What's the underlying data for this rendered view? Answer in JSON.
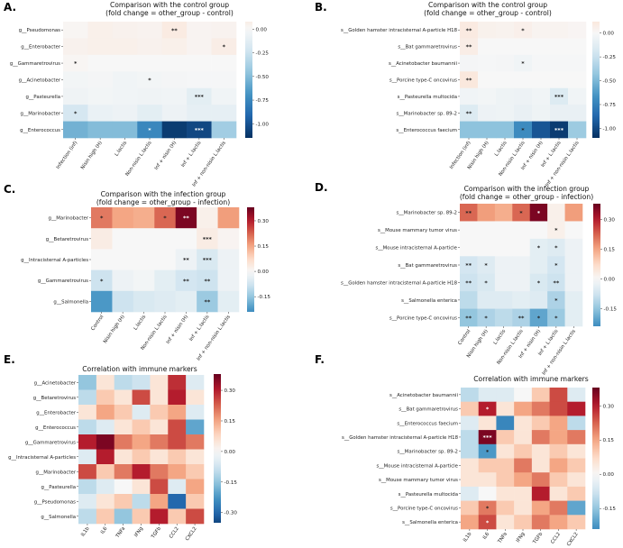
{
  "figure": {
    "panels": [
      {
        "id": "A",
        "label": "A.",
        "title_lines": [
          "Comparison with the control group",
          "(fold change = other_group - control)"
        ]
      },
      {
        "id": "B",
        "label": "B.",
        "title_lines": [
          "Comparison with the control group",
          "(fold change = other_group - control)"
        ]
      },
      {
        "id": "C",
        "label": "C.",
        "title_lines": [
          "Comparison with the infection group",
          "(fold change = other_group - infection)"
        ]
      },
      {
        "id": "D",
        "label": "D.",
        "title_lines": [
          "Comparison with the infection group",
          "(fold change = other_group - infection)"
        ]
      },
      {
        "id": "E",
        "label": "E.",
        "title_lines": [
          "Correlation with immune markers"
        ]
      },
      {
        "id": "F",
        "label": "F.",
        "title_lines": [
          "Correlation with immune markers"
        ]
      }
    ]
  },
  "chart_data": [
    {
      "panel": "A",
      "type": "heatmap",
      "title": "Comparison with the control group (fold change = other_group - control)",
      "rows": [
        "g__Pseudomonas",
        "g__Enterobacter",
        "g__Gammaretrovirus",
        "g__Acinetobacter",
        "g__Pasteurella",
        "g__Marinobacter",
        "g__Enterococcus"
      ],
      "columns": [
        "Infection (inf)",
        "Nisin high (H)",
        "L.lactis",
        "Non-nisin L.lactis",
        "Inf + nisin (H)",
        "Inf + L.lactis",
        "Inf + non-nisin L.lactis"
      ],
      "values": [
        [
          0.02,
          0.06,
          0.05,
          0.04,
          0.1,
          0.03,
          0.04
        ],
        [
          0.05,
          0.06,
          0.06,
          0.05,
          0.06,
          0.03,
          0.08
        ],
        [
          0.02,
          0.0,
          0.0,
          0.0,
          0.0,
          0.0,
          0.0
        ],
        [
          -0.03,
          -0.02,
          -0.04,
          -0.03,
          -0.02,
          -0.01,
          -0.01
        ],
        [
          -0.05,
          -0.03,
          -0.04,
          -0.05,
          -0.04,
          -0.12,
          -0.04
        ],
        [
          -0.2,
          -0.08,
          -0.06,
          -0.12,
          -0.06,
          -0.1,
          -0.1
        ],
        [
          -0.55,
          -0.5,
          -0.5,
          -0.75,
          -1.1,
          -1.05,
          -0.4
        ]
      ],
      "annotations": [
        [
          0,
          4,
          "**"
        ],
        [
          1,
          6,
          "*"
        ],
        [
          2,
          0,
          "*"
        ],
        [
          3,
          3,
          "*"
        ],
        [
          4,
          5,
          "***"
        ],
        [
          5,
          0,
          "*"
        ],
        [
          6,
          3,
          "*"
        ],
        [
          6,
          5,
          "***"
        ]
      ],
      "colorbar": {
        "min": -1.15,
        "max": 0.08,
        "ticks": [
          "0.00",
          "-0.25",
          "-0.50",
          "-0.75",
          "-1.00"
        ],
        "tick_values": [
          0,
          -0.25,
          -0.5,
          -0.75,
          -1.0
        ]
      }
    },
    {
      "panel": "B",
      "type": "heatmap",
      "title": "Comparison with the control group (fold change = other_group - control)",
      "rows": [
        "s__Golden hamster intracisternal A-particle H18",
        "s__Bat gammaretrovirus",
        "s__Acinetobacter baumannii",
        "s__Porcine type-C oncovirus",
        "s__Pasteurella multocida",
        "s__Marinobacter sp. 89-2",
        "s__Enterococcus faecium"
      ],
      "columns": [
        "Infection (inf)",
        "Nisin high (H)",
        "L.lactis",
        "Non-nisin L.lactis",
        "Inf + nisin (H)",
        "Inf + L.lactis",
        "Inf + non-nisin L.lactis"
      ],
      "values": [
        [
          0.1,
          0.05,
          0.04,
          0.06,
          0.03,
          0.03,
          0.02
        ],
        [
          0.08,
          0.0,
          0.0,
          0.0,
          0.0,
          0.0,
          0.0
        ],
        [
          -0.02,
          -0.01,
          -0.02,
          -0.04,
          -0.01,
          -0.01,
          -0.01
        ],
        [
          0.12,
          0.0,
          0.0,
          0.0,
          0.0,
          0.0,
          0.0
        ],
        [
          -0.04,
          -0.03,
          -0.05,
          -0.06,
          -0.04,
          -0.15,
          -0.04
        ],
        [
          -0.15,
          -0.06,
          -0.05,
          -0.08,
          -0.05,
          -0.08,
          -0.08
        ],
        [
          -0.45,
          -0.45,
          -0.45,
          -0.7,
          -0.95,
          -1.05,
          -0.4
        ]
      ],
      "annotations": [
        [
          0,
          0,
          "**"
        ],
        [
          0,
          3,
          "*"
        ],
        [
          1,
          0,
          "**"
        ],
        [
          2,
          3,
          "*"
        ],
        [
          3,
          0,
          "**"
        ],
        [
          4,
          5,
          "***"
        ],
        [
          5,
          0,
          "**"
        ],
        [
          6,
          3,
          "*"
        ],
        [
          6,
          5,
          "***"
        ]
      ],
      "colorbar": {
        "min": -1.1,
        "max": 0.12,
        "ticks": [
          "0.00",
          "-0.25",
          "-0.50",
          "-0.75",
          "-1.00"
        ],
        "tick_values": [
          0,
          -0.25,
          -0.5,
          -0.75,
          -1.0
        ]
      }
    },
    {
      "panel": "C",
      "type": "heatmap",
      "title": "Comparison with the infection group (fold change = other_group - infection)",
      "rows": [
        "g__Marinobacter",
        "g__Betaretrovirus",
        "g__Intracisternal A-particles",
        "g__Gammaretrovirus",
        "g__Salmonella"
      ],
      "columns": [
        "Control",
        "Nisin high (H)",
        "L.lactis",
        "Non-nisin L.lactis",
        "Inf + nisin (H)",
        "Inf + L.lactis",
        "Inf + non-nisin L.lactis"
      ],
      "values": [
        [
          0.2,
          0.15,
          0.14,
          0.22,
          0.36,
          0.02,
          0.16
        ],
        [
          0.03,
          0.0,
          0.0,
          0.0,
          0.0,
          0.03,
          0.01
        ],
        [
          0.0,
          0.0,
          0.0,
          0.0,
          -0.02,
          -0.06,
          -0.02
        ],
        [
          -0.08,
          -0.02,
          -0.01,
          -0.04,
          -0.07,
          -0.08,
          -0.02
        ],
        [
          -0.22,
          -0.08,
          -0.06,
          -0.05,
          -0.04,
          -0.14,
          -0.04
        ]
      ],
      "annotations": [
        [
          0,
          0,
          "*"
        ],
        [
          0,
          3,
          "*"
        ],
        [
          0,
          4,
          "**"
        ],
        [
          1,
          5,
          "***"
        ],
        [
          2,
          4,
          "**"
        ],
        [
          2,
          5,
          "***"
        ],
        [
          3,
          0,
          "*"
        ],
        [
          3,
          4,
          "**"
        ],
        [
          3,
          5,
          "**"
        ],
        [
          4,
          5,
          "**"
        ]
      ],
      "colorbar": {
        "min": -0.24,
        "max": 0.38,
        "ticks": [
          "0.30",
          "0.15",
          "0.00",
          "-0.15"
        ],
        "tick_values": [
          0.3,
          0.15,
          0,
          -0.15
        ]
      }
    },
    {
      "panel": "D",
      "type": "heatmap",
      "title": "Comparison with the infection group (fold change = other_group - infection)",
      "rows": [
        "s__Marinobacter sp. 89-2",
        "s__Mouse mammary tumor virus",
        "s__Mouse intracisternal A-particle",
        "s__Bat gammaretrovirus",
        "s__Golden hamster intracisternal A-particle H18",
        "s__Salmonella enterica",
        "s__Porcine type-C oncovirus"
      ],
      "columns": [
        "Control",
        "Nisin high (H)",
        "L.lactis",
        "Non-nisin L.lactis",
        "Inf + nisin (H)",
        "Inf + L.lactis",
        "Inf + non-nisin L.lactis"
      ],
      "values": [
        [
          0.22,
          0.16,
          0.14,
          0.22,
          0.36,
          0.02,
          0.16
        ],
        [
          0.0,
          0.0,
          0.0,
          0.0,
          0.0,
          0.02,
          0.0
        ],
        [
          0.0,
          0.0,
          0.0,
          0.0,
          -0.04,
          -0.05,
          -0.02
        ],
        [
          -0.07,
          -0.05,
          -0.02,
          -0.02,
          -0.04,
          -0.07,
          -0.02
        ],
        [
          -0.08,
          -0.06,
          -0.02,
          -0.02,
          -0.06,
          -0.08,
          -0.02
        ],
        [
          -0.1,
          -0.05,
          -0.05,
          -0.04,
          -0.05,
          -0.12,
          -0.04
        ],
        [
          -0.15,
          -0.12,
          -0.1,
          -0.12,
          -0.2,
          -0.14,
          -0.04
        ]
      ],
      "annotations": [
        [
          0,
          0,
          "**"
        ],
        [
          0,
          3,
          "*"
        ],
        [
          0,
          4,
          "*"
        ],
        [
          1,
          5,
          "*"
        ],
        [
          2,
          4,
          "*"
        ],
        [
          2,
          5,
          "*"
        ],
        [
          3,
          0,
          "**"
        ],
        [
          3,
          1,
          "*"
        ],
        [
          3,
          5,
          "*"
        ],
        [
          4,
          0,
          "**"
        ],
        [
          4,
          1,
          "*"
        ],
        [
          4,
          4,
          "*"
        ],
        [
          4,
          5,
          "**"
        ],
        [
          5,
          5,
          "*"
        ],
        [
          6,
          0,
          "**"
        ],
        [
          6,
          1,
          "*"
        ],
        [
          6,
          3,
          "**"
        ],
        [
          6,
          4,
          "*"
        ],
        [
          6,
          5,
          "*"
        ]
      ],
      "colorbar": {
        "min": -0.24,
        "max": 0.38,
        "ticks": [
          "0.30",
          "0.15",
          "0.00",
          "-0.15"
        ],
        "tick_values": [
          0.3,
          0.15,
          0,
          -0.15
        ]
      }
    },
    {
      "panel": "E",
      "type": "heatmap",
      "title": "Correlation with immune markers",
      "rows": [
        "g__Acinetobacter",
        "g__Betaretrovirus",
        "g__Enterobacter",
        "g__Enterococcus",
        "g__Gammaretrovirus",
        "g__Intracisternal A-particles",
        "g__Marinobacter",
        "g__Pasteurella",
        "g__Pseudomonas",
        "g__Salmonella"
      ],
      "columns": [
        "IL1b",
        "IL6",
        "TNFa",
        "IFNg",
        "TGFb",
        "CCL2",
        "CXCL2"
      ],
      "values": [
        [
          -0.15,
          0.05,
          -0.1,
          -0.08,
          0.05,
          0.28,
          -0.05
        ],
        [
          -0.1,
          0.1,
          0.05,
          0.25,
          0.05,
          0.3,
          0.05
        ],
        [
          0.05,
          0.15,
          0.1,
          -0.05,
          0.1,
          0.15,
          -0.05
        ],
        [
          -0.1,
          -0.05,
          0.05,
          0.1,
          0.05,
          0.25,
          -0.2
        ],
        [
          0.3,
          0.36,
          0.2,
          0.15,
          0.2,
          0.25,
          0.2
        ],
        [
          -0.05,
          0.3,
          0.05,
          0.1,
          0.05,
          0.1,
          0.05
        ],
        [
          0.25,
          0.1,
          0.2,
          0.3,
          0.2,
          0.15,
          0.1
        ],
        [
          -0.1,
          -0.05,
          0.0,
          0.05,
          0.25,
          -0.05,
          0.15
        ],
        [
          -0.05,
          0.05,
          0.1,
          -0.1,
          0.15,
          -0.3,
          0.1
        ],
        [
          -0.1,
          0.1,
          -0.15,
          0.1,
          0.3,
          0.1,
          0.25
        ]
      ],
      "annotations": [],
      "colorbar": {
        "min": -0.35,
        "max": 0.38,
        "ticks": [
          "0.30",
          "0.15",
          "0.00",
          "-0.15",
          "-0.30"
        ],
        "tick_values": [
          0.3,
          0.15,
          0,
          -0.15,
          -0.3
        ]
      }
    },
    {
      "panel": "F",
      "type": "heatmap",
      "title": "Correlation with immune markers",
      "rows": [
        "s__Acinetobacter baumannii",
        "s__Bat gammaretrovirus",
        "s__Enterococcus faecium",
        "s__Golden hamster intracisternal A-particle H18",
        "s__Marinobacter sp. 89-2",
        "s__Mouse intracisternal A-particle",
        "s__Mouse mammary tumor virus",
        "s__Pasteurella multocida",
        "s__Porcine type-C oncovirus",
        "s__Salmonella enterica"
      ],
      "columns": [
        "IL1b",
        "IL6",
        "TNFa",
        "IFNg",
        "TGFb",
        "CCL2",
        "CXCL2"
      ],
      "values": [
        [
          -0.1,
          -0.05,
          -0.05,
          0.0,
          0.1,
          0.25,
          -0.05
        ],
        [
          0.1,
          0.3,
          0.05,
          0.15,
          0.2,
          0.25,
          0.3
        ],
        [
          -0.05,
          0.05,
          -0.25,
          0.05,
          0.1,
          0.15,
          -0.1
        ],
        [
          -0.1,
          0.36,
          0.1,
          0.05,
          0.2,
          0.15,
          0.2
        ],
        [
          -0.1,
          -0.22,
          0.05,
          0.1,
          0.05,
          0.1,
          0.05
        ],
        [
          0.05,
          0.1,
          0.1,
          0.2,
          0.05,
          0.15,
          0.1
        ],
        [
          0.05,
          0.05,
          0.1,
          0.15,
          0.2,
          0.1,
          0.05
        ],
        [
          -0.05,
          0.0,
          0.05,
          0.05,
          0.3,
          0.05,
          0.1
        ],
        [
          0.1,
          0.2,
          0.1,
          0.05,
          0.15,
          0.2,
          -0.2
        ],
        [
          0.15,
          0.25,
          0.05,
          0.1,
          0.2,
          0.15,
          0.1
        ]
      ],
      "annotations": [
        [
          1,
          1,
          "*"
        ],
        [
          3,
          1,
          "***"
        ],
        [
          4,
          1,
          "*"
        ],
        [
          8,
          1,
          "*"
        ],
        [
          9,
          1,
          "*"
        ]
      ],
      "colorbar": {
        "min": -0.24,
        "max": 0.38,
        "ticks": [
          "0.30",
          "0.15",
          "0.00",
          "-0.15"
        ],
        "tick_values": [
          0.3,
          0.15,
          0,
          -0.15
        ]
      }
    }
  ]
}
